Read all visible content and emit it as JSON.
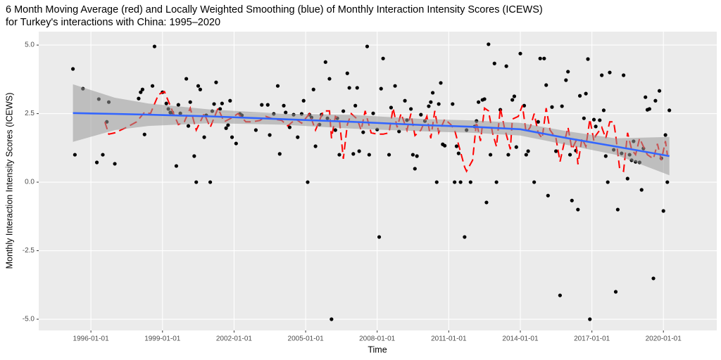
{
  "chart_data": {
    "type": "scatter",
    "title": "6 Month Moving Average (red) and Locally Weighted Smoothing (blue) of Monthly Interaction Intensity Scores (ICEWS)",
    "subtitle": "for Turkey's interactions with China: 1995–2020",
    "x_label": "Time",
    "y_label": "Monthly Interaction Intensity Scores (ICEWS)",
    "xlim": [
      "1993-10-24",
      "2022-03-28"
    ],
    "xticks": [
      "1996-01-01",
      "1999-01-01",
      "2002-01-01",
      "2005-01-01",
      "2008-01-01",
      "2011-01-01",
      "2014-01-01",
      "2017-01-01",
      "2020-01-01"
    ],
    "ylim": [
      -5.41,
      5.49
    ],
    "yticks": [
      {
        "value": -5,
        "label": "-5.0"
      },
      {
        "value": -2.5,
        "label": "-2.5"
      },
      {
        "value": 0,
        "label": "0.0"
      },
      2.5,
      {
        "value": 5,
        "label": "5.0"
      }
    ],
    "grid": true,
    "series": [
      {
        "type": "scatter",
        "color": "#000000",
        "x": [
          "1995-04-01",
          "1995-05-01",
          "1995-09-01",
          "1996-04-01",
          "1996-05-01",
          "1996-07-01",
          "1996-09-01",
          "1996-10-01",
          "1997-01-01",
          "1998-01-01",
          "1998-02-01",
          "1998-03-01",
          "1998-04-01",
          "1998-08-01",
          "1998-09-01",
          "1999-01-01",
          "1999-03-01",
          "1999-04-01",
          "1999-05-01",
          "1999-06-01",
          "1999-08-01",
          "1999-09-01",
          "1999-10-01",
          "2000-01-01",
          "2000-02-01",
          "2000-03-01",
          "2000-05-01",
          "2000-06-01",
          "2000-07-01",
          "2000-08-01",
          "2000-10-01",
          "2000-11-01",
          "2001-01-01",
          "2001-02-01",
          "2001-03-01",
          "2001-04-01",
          "2001-06-01",
          "2001-07-01",
          "2001-09-01",
          "2001-10-01",
          "2001-11-01",
          "2001-12-01",
          "2002-02-01",
          "2002-04-01",
          "2002-05-01",
          "2002-12-01",
          "2003-03-01",
          "2003-06-01",
          "2003-07-01",
          "2003-09-01",
          "2003-11-01",
          "2003-12-01",
          "2004-02-01",
          "2004-03-01",
          "2004-05-01",
          "2004-07-01",
          "2004-09-01",
          "2004-11-01",
          "2004-12-01",
          "2005-02-01",
          "2005-03-01",
          "2005-04-01",
          "2005-05-01",
          "2005-06-01",
          "2005-08-01",
          "2005-09-01",
          "2005-11-01",
          "2005-12-01",
          "2006-01-01",
          "2006-02-01",
          "2006-04-01",
          "2006-05-01",
          "2006-06-01",
          "2006-08-01",
          "2006-10-01",
          "2006-11-01",
          "2007-01-01",
          "2007-02-01",
          "2007-03-01",
          "2007-04-01",
          "2007-06-01",
          "2007-08-01",
          "2007-09-01",
          "2007-11-01",
          "2008-01-01",
          "2008-02-01",
          "2008-03-01",
          "2008-04-01",
          "2008-07-01",
          "2008-08-01",
          "2008-10-01",
          "2008-12-01",
          "2009-03-01",
          "2009-04-01",
          "2009-06-01",
          "2009-07-01",
          "2009-08-01",
          "2009-09-01",
          "2009-11-01",
          "2010-01-01",
          "2010-03-01",
          "2010-04-01",
          "2010-05-01",
          "2010-07-01",
          "2010-08-01",
          "2010-09-01",
          "2010-10-01",
          "2010-11-01",
          "2011-03-01",
          "2011-04-01",
          "2011-05-01",
          "2011-06-01",
          "2011-07-01",
          "2011-09-01",
          "2011-10-01",
          "2011-12-01",
          "2012-02-01",
          "2012-03-01",
          "2012-04-01",
          "2012-06-01",
          "2012-07-01",
          "2012-08-01",
          "2012-09-01",
          "2012-10-01",
          "2012-12-01",
          "2013-01-01",
          "2013-03-01",
          "2013-06-01",
          "2013-07-01",
          "2013-09-01",
          "2013-10-01",
          "2013-11-01",
          "2014-01-01",
          "2014-03-01",
          "2014-04-01",
          "2014-05-01",
          "2014-08-01",
          "2014-10-01",
          "2014-11-01",
          "2015-01-01",
          "2015-02-01",
          "2015-03-01",
          "2015-05-01",
          "2015-07-01",
          "2015-09-01",
          "2015-10-01",
          "2015-12-01",
          "2016-01-01",
          "2016-02-01",
          "2016-03-01",
          "2016-05-01",
          "2016-06-01",
          "2016-07-01",
          "2016-09-01",
          "2016-10-01",
          "2016-11-01",
          "2016-12-01",
          "2017-02-01",
          "2017-03-01",
          "2017-05-01",
          "2017-06-01",
          "2017-07-01",
          "2017-08-01",
          "2017-09-01",
          "2017-10-01",
          "2017-12-01",
          "2018-01-01",
          "2018-02-01",
          "2018-04-01",
          "2018-05-01",
          "2018-07-01",
          "2018-08-01",
          "2018-09-01",
          "2018-10-01",
          "2018-11-01",
          "2019-01-01",
          "2019-02-01",
          "2019-03-01",
          "2019-04-01",
          "2019-05-01",
          "2019-06-01",
          "2019-08-01",
          "2019-09-01",
          "2019-11-01",
          "2019-12-01",
          "2020-01-01",
          "2020-02-01",
          "2020-03-01",
          "2020-04-01"
        ],
        "values": [
          4.13,
          1.0,
          3.41,
          0.72,
          3.03,
          1.0,
          2.2,
          2.92,
          0.67,
          3.05,
          3.28,
          3.38,
          1.74,
          3.51,
          4.95,
          3.28,
          2.87,
          2.67,
          2.54,
          2.54,
          0.59,
          2.82,
          2.51,
          3.77,
          2.05,
          2.92,
          0.95,
          0,
          3.51,
          3.38,
          1.64,
          2.44,
          0,
          2.59,
          2.85,
          3.64,
          2.67,
          2.87,
          1.97,
          2.08,
          2.97,
          1.64,
          1.41,
          2.49,
          2.44,
          1.9,
          2.82,
          2.82,
          1.72,
          2.49,
          3.51,
          1.03,
          2.79,
          2.54,
          2.0,
          2.46,
          1.64,
          2.49,
          2.97,
          0,
          2.46,
          2.36,
          3.38,
          1.31,
          2.1,
          2.46,
          4.38,
          2.33,
          3.77,
          -5.0,
          1.9,
          2.33,
          1.0,
          2.59,
          3.97,
          3.44,
          1.03,
          2.79,
          3.44,
          1.13,
          1.82,
          4.95,
          1.0,
          2.51,
          1.92,
          -2.0,
          3.41,
          4.51,
          1.0,
          2.72,
          3.51,
          1.85,
          2.97,
          2.26,
          2.67,
          1.0,
          0.49,
          0.95,
          2.46,
          2.23,
          2.77,
          2.92,
          3.26,
          0,
          2.85,
          3.62,
          1.38,
          1.33,
          2.85,
          0,
          1.31,
          1.05,
          0,
          -2.0,
          1.9,
          0,
          2.03,
          2.23,
          2.92,
          3.0,
          3.03,
          -0.74,
          5.03,
          1.0,
          4.33,
          0,
          2.64,
          4.23,
          1.0,
          3.0,
          3.13,
          1.28,
          4.69,
          2.79,
          1.0,
          1.13,
          0,
          2.2,
          4.51,
          4.51,
          3.54,
          -0.49,
          2.74,
          1.13,
          -4.13,
          2.77,
          3.72,
          4.03,
          1.0,
          -0.67,
          1.15,
          -1.0,
          3.15,
          2.33,
          3.23,
          4.49,
          -5.0,
          2.28,
          2.03,
          2.26,
          3.9,
          2.62,
          0.95,
          0,
          4.0,
          1.18,
          -4.0,
          -1.0,
          1.05,
          3.9,
          0.13,
          1.0,
          0.8,
          1.49,
          0.74,
          0.72,
          -0.28,
          1.23,
          3.1,
          2.64,
          2.67,
          -3.51,
          2.97,
          3.33,
          0.87,
          -1.05,
          1.72,
          0,
          2.62
        ]
      },
      {
        "type": "line",
        "color": "#ff0000",
        "dashed": true,
        "x": [
          "1996-08-01",
          "1996-10-01",
          "1997-01-01",
          "1997-07-01",
          "1997-12-01",
          "1998-04-01",
          "1998-07-01",
          "1998-11-01",
          "1999-02-01",
          "1999-06-01",
          "1999-09-01",
          "1999-12-01",
          "2000-03-01",
          "2000-06-01",
          "2000-10-01",
          "2001-01-01",
          "2001-05-01",
          "2001-08-01",
          "2001-12-01",
          "2002-03-01",
          "2002-07-01",
          "2002-10-01",
          "2003-02-01",
          "2003-05-01",
          "2003-09-01",
          "2004-01-01",
          "2004-04-01",
          "2004-08-01",
          "2004-11-01",
          "2005-03-01",
          "2005-06-01",
          "2005-10-01",
          "2006-01-01",
          "2006-02-01",
          "2006-04-01",
          "2006-06-01",
          "2006-08-01",
          "2006-10-01",
          "2006-12-01",
          "2007-03-01",
          "2007-05-01",
          "2007-07-01",
          "2007-10-01",
          "2008-01-01",
          "2008-04-01",
          "2008-07-01",
          "2008-09-01",
          "2008-11-01",
          "2009-01-01",
          "2009-04-01",
          "2009-06-01",
          "2009-08-01",
          "2009-11-01",
          "2010-02-01",
          "2010-04-01",
          "2010-06-01",
          "2010-08-01",
          "2010-11-01",
          "2011-02-01",
          "2011-04-01",
          "2011-07-01",
          "2011-09-01",
          "2011-10-01",
          "2012-01-01",
          "2012-03-01",
          "2012-05-01",
          "2012-07-01",
          "2012-09-01",
          "2012-11-01",
          "2013-01-01",
          "2013-03-01",
          "2013-05-01",
          "2013-08-01",
          "2013-09-01",
          "2013-12-01",
          "2014-02-01",
          "2014-04-01",
          "2014-06-01",
          "2014-08-01",
          "2014-10-01",
          "2014-12-01",
          "2015-02-01",
          "2015-04-01",
          "2015-07-01",
          "2015-09-01",
          "2015-11-01",
          "2016-01-01",
          "2016-03-01",
          "2016-05-01",
          "2016-06-01",
          "2016-08-01",
          "2016-10-01",
          "2016-12-01",
          "2017-02-01",
          "2017-03-01",
          "2017-06-01",
          "2017-08-01",
          "2017-10-01",
          "2017-12-01",
          "2018-01-01",
          "2018-03-01",
          "2018-05-01",
          "2018-07-01",
          "2018-09-01",
          "2018-11-01",
          "2019-01-01",
          "2019-03-01",
          "2019-05-01",
          "2019-08-01",
          "2019-10-01",
          "2019-12-01",
          "2020-02-01",
          "2020-03-01"
        ],
        "values": [
          2.2,
          1.75,
          1.8,
          2.0,
          2.2,
          2.55,
          2.5,
          3.2,
          3.3,
          2.6,
          2.1,
          2.2,
          2.7,
          1.9,
          2.5,
          2.0,
          2.7,
          2.2,
          2.35,
          2.5,
          2.2,
          2.2,
          2.25,
          2.4,
          2.3,
          2.25,
          2.05,
          2.3,
          2.15,
          2.5,
          1.9,
          2.6,
          2.6,
          1.6,
          2.4,
          2.3,
          0.85,
          2.1,
          2.5,
          2.3,
          1.9,
          2.6,
          1.8,
          1.75,
          1.75,
          1.8,
          2.7,
          2.0,
          2.5,
          1.9,
          2.5,
          1.7,
          1.9,
          2.4,
          1.6,
          2.6,
          1.8,
          2.3,
          2.1,
          1.9,
          1.1,
          0.55,
          0.4,
          0.8,
          2.2,
          1.5,
          2.7,
          2.6,
          1.8,
          1.3,
          2.7,
          2.0,
          1.2,
          2.3,
          2.4,
          2.8,
          1.8,
          2.0,
          2.5,
          1.8,
          1.6,
          2.7,
          1.9,
          1.6,
          0.75,
          1.4,
          2.0,
          1.2,
          1.5,
          0.65,
          1.6,
          1.3,
          2.3,
          1.5,
          1.7,
          2.0,
          1.6,
          2.2,
          2.2,
          1.7,
          0.5,
          0.4,
          1.8,
          1.2,
          1.0,
          1.6,
          1.3,
          1.0,
          0.85,
          1.4,
          0.8,
          1.5,
          1.0
        ]
      },
      {
        "type": "smooth",
        "color": "#3366ff",
        "band_color": "#999999",
        "x": [
          "1995-04-01",
          "1997-01-01",
          "1998-06-01",
          "2001-01-01",
          "2004-01-01",
          "2007-01-01",
          "2010-01-01",
          "2012-01-01",
          "2014-01-01",
          "2016-01-01",
          "2018-01-01",
          "2020-04-01"
        ],
        "values": [
          2.52,
          2.49,
          2.46,
          2.4,
          2.3,
          2.2,
          2.08,
          2.02,
          1.93,
          1.6,
          1.3,
          0.95
        ],
        "lower": [
          1.47,
          1.9,
          2.05,
          2.15,
          2.1,
          1.95,
          1.85,
          1.8,
          1.7,
          1.35,
          1.0,
          0.25
        ],
        "upper": [
          3.57,
          3.08,
          2.87,
          2.65,
          2.5,
          2.45,
          2.3,
          2.25,
          2.16,
          1.85,
          1.6,
          1.65
        ]
      }
    ]
  }
}
